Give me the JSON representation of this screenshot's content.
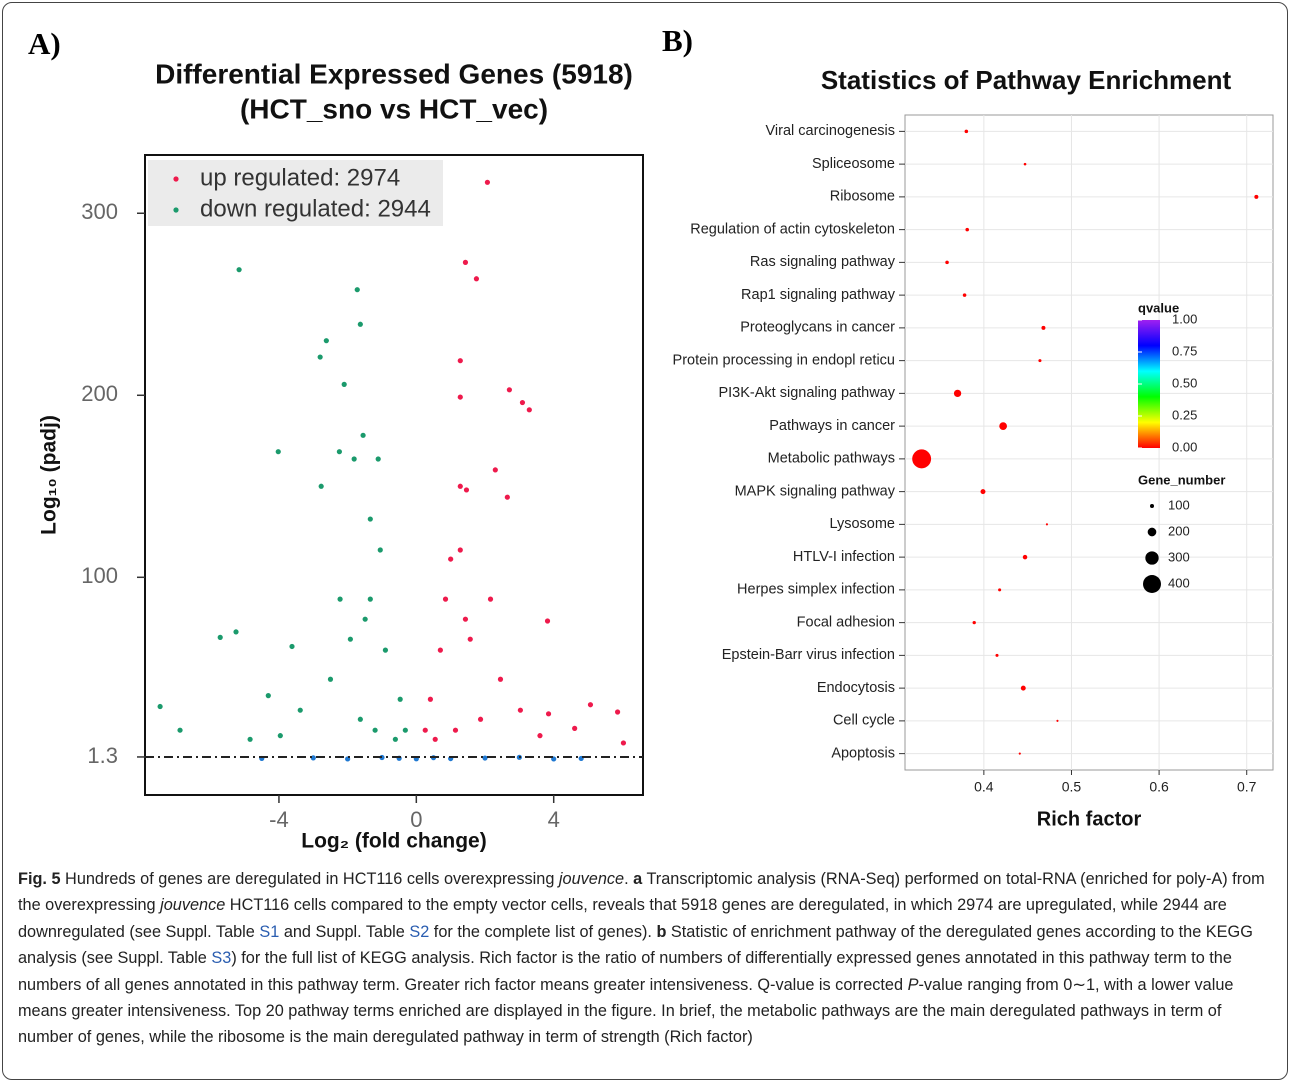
{
  "panel_labels": [
    "A)",
    "B)"
  ],
  "chart_data": [
    {
      "type": "scatter",
      "title": "Differential Expressed Genes (5918)",
      "subtitle": "(HCT_sno vs HCT_vec)",
      "xlabel": "Log₂ (fold change)",
      "ylabel": "Log₁₀ (padj)",
      "xlim": [
        -7.9,
        6.6
      ],
      "ylim": [
        -19.6,
        332
      ],
      "xticks": [
        -4,
        0,
        4
      ],
      "yticks": [
        1.3,
        100,
        200,
        300
      ],
      "threshold": 1.3,
      "legend": "top-left",
      "series": [
        {
          "name": "up regulated: 2974",
          "color": "#ee1a4c",
          "x": [
            1.43,
            1.75,
            2.07,
            1.28,
            1.28,
            2.71,
            3.09,
            3.29,
            2.3,
            2.65,
            1.28,
            1.46,
            3.82,
            3.85,
            5.07,
            5.86,
            6.03,
            4.61,
            1.28,
            1.0,
            0.85,
            0.7,
            1.57,
            2.45,
            3.03,
            0.41,
            1.87,
            0.55,
            1.14,
            3.6,
            2.16,
            1.43,
            0.26
          ],
          "y": [
            273,
            264,
            317,
            219,
            199,
            203,
            196,
            192,
            159,
            144,
            150,
            148,
            76,
            25,
            30,
            26,
            9,
            17,
            115,
            110,
            88,
            60,
            66,
            44,
            27,
            33,
            22,
            11,
            16,
            13,
            88,
            77,
            16
          ]
        },
        {
          "name": "down regulated: 2944",
          "color": "#1b9a6c",
          "x": [
            -5.16,
            -1.72,
            -1.63,
            -2.62,
            -2.8,
            -2.1,
            -4.02,
            -1.55,
            -2.24,
            -1.81,
            -1.11,
            -2.77,
            -1.34,
            -7.46,
            -5.25,
            -5.71,
            -4.31,
            -3.62,
            -1.05,
            -1.34,
            -0.9,
            -1.92,
            -2.5,
            -3.38,
            -0.47,
            -1.63,
            -0.61,
            -1.2,
            -3.96,
            -2.22,
            -1.49,
            -0.32,
            -4.84,
            -6.88
          ],
          "y": [
            269,
            258,
            239,
            230,
            221,
            206,
            169,
            178,
            169,
            165,
            165,
            150,
            132,
            29,
            70,
            67,
            35,
            62,
            115,
            88,
            60,
            66,
            44,
            27,
            33,
            22,
            11,
            16,
            13,
            88,
            77,
            16,
            11,
            16
          ]
        },
        {
          "color": "#1f78d1",
          "x": [
            -4.5,
            -3,
            -2,
            -1,
            -0.5,
            0,
            0.5,
            1,
            2,
            3,
            4,
            4.8
          ],
          "y": [
            0.5,
            0.8,
            0.2,
            1.0,
            0.6,
            0.3,
            0.9,
            0.4,
            0.7,
            1.1,
            0.2,
            0.5
          ]
        }
      ]
    },
    {
      "type": "dot",
      "title": "Statistics of Pathway Enrichment",
      "xlabel": "Rich factor",
      "categories": [
        "Viral carcinogenesis",
        "Spliceosome",
        "Ribosome",
        "Regulation of actin cytoskeleton",
        "Ras signaling pathway",
        "Rap1 signaling pathway",
        "Proteoglycans in cancer",
        "Protein processing in endopl reticu",
        "PI3K-Akt signaling pathway",
        "Pathways in cancer",
        "Metabolic pathways",
        "MAPK signaling pathway",
        "Lysosome",
        "HTLV-I infection",
        "Herpes simplex infection",
        "Focal adhesion",
        "Epstein-Barr virus infection",
        "Endocytosis",
        "Cell cycle",
        "Apoptosis"
      ],
      "values": [
        0.38,
        0.447,
        0.711,
        0.381,
        0.358,
        0.378,
        0.468,
        0.464,
        0.37,
        0.422,
        0.329,
        0.399,
        0.472,
        0.447,
        0.418,
        0.389,
        0.415,
        0.445,
        0.484,
        0.441
      ],
      "sizes": [
        90,
        70,
        100,
        90,
        90,
        90,
        100,
        80,
        170,
        180,
        420,
        120,
        60,
        110,
        80,
        85,
        80,
        120,
        60,
        60
      ],
      "qvalues": [
        0,
        0,
        0,
        0,
        0,
        0,
        0,
        0,
        0,
        0,
        0,
        0,
        0,
        0,
        0,
        0,
        0,
        0,
        0,
        0
      ],
      "xlim": [
        0.31,
        0.73
      ],
      "xticks": [
        0.4,
        0.5,
        0.6,
        0.7
      ],
      "grid": true,
      "colorbar": {
        "title": "qvalue",
        "lim": [
          0,
          1
        ],
        "colors": [
          "#ff0000",
          "#ffff00",
          "#00ff00",
          "#00ffff",
          "#0000ff",
          "#a020f0"
        ],
        "ticks": [
          {
            "value": 1,
            "label": "1.00"
          },
          {
            "value": 0.75,
            "label": "0.75"
          },
          {
            "value": 0.5,
            "label": "0.50"
          },
          {
            "value": 0.25,
            "label": "0.25"
          },
          {
            "value": 0,
            "label": "0.00"
          }
        ]
      },
      "size_legend": {
        "title": "Gene_number",
        "ticks": [
          100,
          200,
          300,
          400
        ]
      }
    }
  ],
  "caption": [
    {
      "text": "Fig. 5",
      "style": "bold"
    },
    {
      "text": " Hundreds of genes are deregulated in HCT116 cells overexpressing "
    },
    {
      "text": "jouvence",
      "style": "italic"
    },
    {
      "text": ". "
    },
    {
      "text": "a",
      "style": "bold"
    },
    {
      "text": " Transcriptomic analysis (RNA-Seq) performed on total-RNA (enriched for poly-A) from the overexpressing "
    },
    {
      "text": "jouvence",
      "style": "italic"
    },
    {
      "text": " HCT116 cells compared to the empty vector cells, reveals that 5918 genes are deregulated, in which 2974 are upregulated, while 2944 are downregulated (see Suppl. Table "
    },
    {
      "text": "S1",
      "style": "link"
    },
    {
      "text": " and Suppl. Table "
    },
    {
      "text": "S2",
      "style": "link"
    },
    {
      "text": " for the complete list of genes). "
    },
    {
      "text": "b",
      "style": "bold"
    },
    {
      "text": " Statistic of enrichment pathway of the deregulated genes according to the KEGG analysis (see Suppl. Table "
    },
    {
      "text": "S3",
      "style": "link"
    },
    {
      "text": ") for the full list of KEGG analysis. Rich factor is the ratio of numbers of differentially expressed genes annotated in this pathway term to the numbers of all genes annotated in this pathway term. Greater rich factor means greater intensiveness. Q-value is corrected "
    },
    {
      "text": "P",
      "style": "italic"
    },
    {
      "text": "-value ranging from 0∼1, with a lower value means greater intensiveness. Top 20 pathway terms enriched are displayed in the figure. In brief, the metabolic pathways are the main deregulated pathways in term of number of genes, while the ribosome is the main deregulated pathway in term of strength (Rich factor)"
    }
  ]
}
